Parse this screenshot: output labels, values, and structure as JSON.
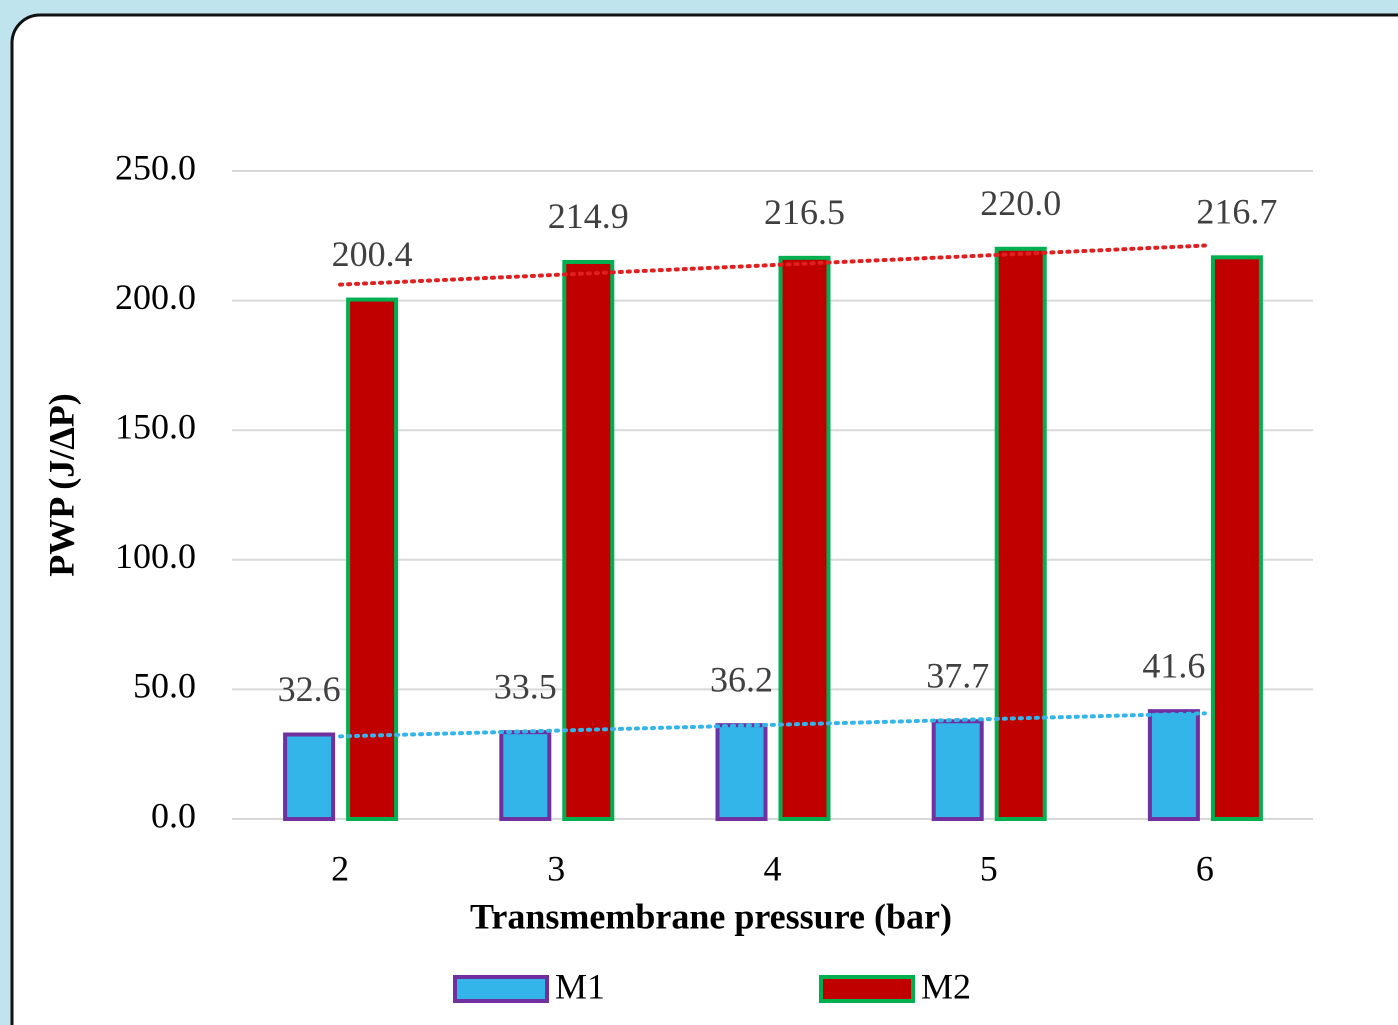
{
  "chart_data": {
    "type": "bar",
    "x_label": "Transmembrane pressure (bar)",
    "y_label": "PWP (J/ΔP)",
    "categories": [
      "2",
      "3",
      "4",
      "5",
      "6"
    ],
    "series": [
      {
        "name": "M1",
        "color": "#33b5ea",
        "edge_color": "#7030a0",
        "trendline_color": "#33b5ea",
        "values": [
          32.6,
          33.5,
          36.2,
          37.7,
          41.6
        ],
        "value_labels": [
          "32.6",
          "33.5",
          "36.2",
          "37.7",
          "41.6"
        ]
      },
      {
        "name": "M2",
        "color": "#c00000",
        "edge_color": "#00b050",
        "trendline_color": "#e02020",
        "values": [
          200.4,
          214.9,
          216.5,
          220.0,
          216.7
        ],
        "value_labels": [
          "200.4",
          "214.9",
          "216.5",
          "220.0",
          "216.7"
        ]
      }
    ],
    "trendline": "linear",
    "ylim": [
      0,
      250
    ],
    "yticks": [
      {
        "value": 0,
        "label": "0.0"
      },
      {
        "value": 50,
        "label": "50.0"
      },
      {
        "value": 100,
        "label": "100.0"
      },
      {
        "value": 150,
        "label": "150.0"
      },
      {
        "value": 200,
        "label": "200.0"
      },
      {
        "value": 250,
        "label": "250.0"
      }
    ],
    "grid": true,
    "legend": "bottom"
  }
}
